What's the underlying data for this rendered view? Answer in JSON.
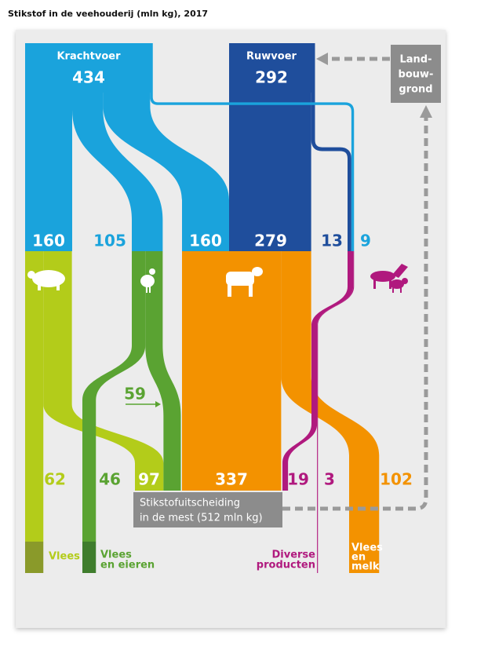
{
  "title": "Stikstof in de veehouderij (mln kg), 2017",
  "feed": [
    {
      "name": "Krachtvoer",
      "total": 434
    },
    {
      "name": "Ruwvoer",
      "total": 292
    }
  ],
  "land": [
    "Land-",
    "bouw-",
    "grond"
  ],
  "inflows": [
    160,
    105,
    160,
    279,
    13,
    9
  ],
  "outflows": [
    62,
    46,
    97,
    337,
    19,
    3,
    102
  ],
  "chicken_to_manure": 59,
  "manure": [
    "Stikstofuitscheiding",
    "in de mest (512 mln kg)"
  ],
  "products": [
    [
      "Vlees"
    ],
    [
      "Vlees",
      "en eieren"
    ],
    [
      "Diverse",
      "producten"
    ],
    [
      "Vlees",
      "en",
      "melk"
    ]
  ]
}
